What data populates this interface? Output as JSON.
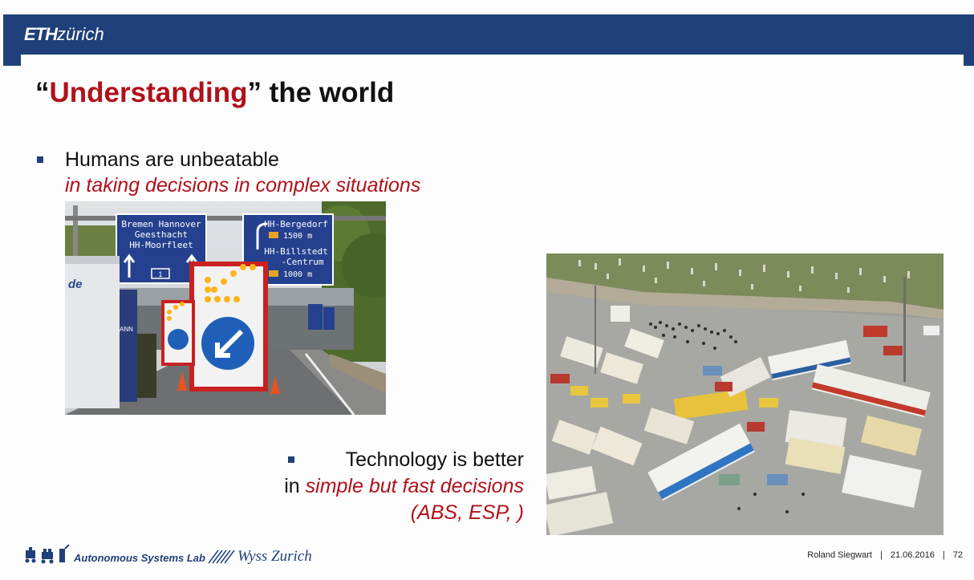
{
  "header": {
    "logo_eth": "ETH",
    "logo_zurich": "zürich",
    "color": "#1f407a"
  },
  "title": {
    "quote_open": "“",
    "highlight": "Understanding",
    "rest": "” the world",
    "highlight_color": "#b0111a"
  },
  "bullet1": {
    "line1": "Humans are unbeatable",
    "line2": "in taking decisions in complex situations"
  },
  "photo1": {
    "signs": {
      "left_sign_lines": [
        "Bremen Hannover",
        "Geesthacht",
        "HH-Moorfleet"
      ],
      "left_sign_number": "1",
      "right_sign_line1": "HH-Bergedorf",
      "right_sign_dist1": "1500 m",
      "right_sign_line2": "HH-Billstedt",
      "right_sign_line3": "-Centrum",
      "right_sign_dist2": "1000 m",
      "truck_text": "de",
      "truck_text2": "ANN"
    }
  },
  "bullet2": {
    "line1": "Technology is better",
    "line2_prefix": "in ",
    "line2_em": "simple but fast decisions",
    "line3": "(ABS, ESP,     )"
  },
  "footer": {
    "lab_name": "Autonomous Systems Lab",
    "wyss": "Wyss Zurich",
    "author": "Roland Siegwart",
    "separator": "|",
    "date": "21.06.2016",
    "page": "72"
  }
}
